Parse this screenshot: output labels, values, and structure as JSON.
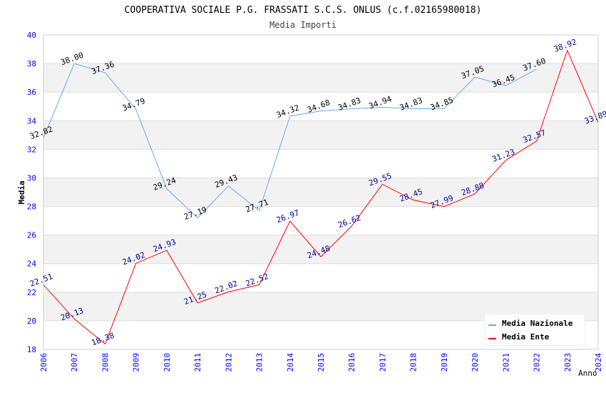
{
  "chart_data": {
    "type": "line",
    "title": "COOPERATIVA SOCIALE P.G. FRASSATI S.C.S. ONLUS (c.f.02165980018)",
    "subtitle": "Media Importi",
    "xlabel": "Anno",
    "ylabel": "Media",
    "ylim": [
      18,
      40
    ],
    "yticks": [
      "18",
      "20",
      "22",
      "24",
      "26",
      "28",
      "30",
      "32",
      "34",
      "36",
      "38",
      "40"
    ],
    "x": [
      "2006",
      "2007",
      "2008",
      "2009",
      "2010",
      "2011",
      "2012",
      "2013",
      "2014",
      "2015",
      "2016",
      "2017",
      "2018",
      "2019",
      "2020",
      "2021",
      "2022",
      "2023",
      "2024"
    ],
    "series": [
      {
        "name": "Media Nazionale",
        "color": "#66aaee",
        "label_color": "#000000",
        "values": [
          32.82,
          38.0,
          37.36,
          34.79,
          29.24,
          27.19,
          29.43,
          27.71,
          34.32,
          34.68,
          34.83,
          34.94,
          34.83,
          34.85,
          37.05,
          36.45,
          37.6,
          null,
          null
        ]
      },
      {
        "name": "Media Ente",
        "color": "#ff0000",
        "label_color": "#000099",
        "values": [
          22.51,
          20.13,
          18.38,
          24.02,
          24.93,
          21.25,
          22.02,
          22.52,
          26.97,
          24.48,
          26.62,
          29.55,
          28.45,
          27.99,
          28.88,
          31.23,
          32.57,
          38.92,
          33.89
        ]
      }
    ],
    "legend": "top-right"
  }
}
